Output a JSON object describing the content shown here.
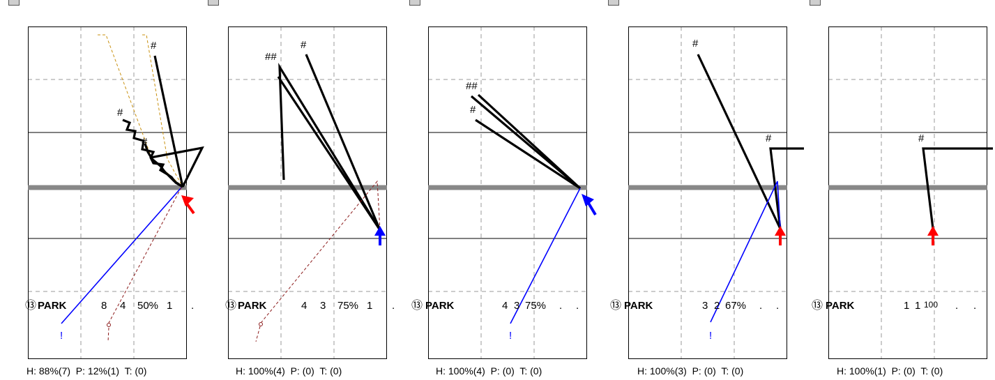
{
  "chart_data": [
    {
      "type": "other",
      "player": "PARK",
      "circle_num": "13",
      "stats": {
        "a": "8",
        "b": "4",
        "pct": "50%",
        "c": "1",
        "d": "."
      },
      "footer": "H: 88%(7)  P: 12%(1)  T: (0)",
      "arrow_color": "#ff0000",
      "end_mark": "!"
    },
    {
      "type": "other",
      "player": "PARK",
      "circle_num": "13",
      "stats": {
        "a": "4",
        "b": "3",
        "pct": "75%",
        "c": "1",
        "d": "."
      },
      "footer": "H: 100%(4)  P: (0)  T: (0)",
      "arrow_color": "#0000ff",
      "end_mark": ""
    },
    {
      "type": "other",
      "player": "PARK",
      "circle_num": "13",
      "stats": {
        "a": "4",
        "b": "3",
        "pct": "75%",
        "c": ".",
        "d": "."
      },
      "footer": "H: 100%(4)  P: (0)  T: (0)",
      "arrow_color": "#0000ff",
      "end_mark": "!"
    },
    {
      "type": "other",
      "player": "PARK",
      "circle_num": "13",
      "stats": {
        "a": "3",
        "b": "2",
        "pct": "67%",
        "c": ".",
        "d": "."
      },
      "footer": "H: 100%(3)  P: (0)  T: (0)",
      "arrow_color": "#ff0000",
      "end_mark": "!"
    },
    {
      "type": "other",
      "player": "PARK",
      "circle_num": "13",
      "stats": {
        "a": "1",
        "b": "1",
        "pct": "100",
        "c": ".",
        "d": "."
      },
      "footer": "H: 100%(1)  P: (0)  T: (0)",
      "arrow_color": "#ff0000",
      "end_mark": ""
    }
  ]
}
